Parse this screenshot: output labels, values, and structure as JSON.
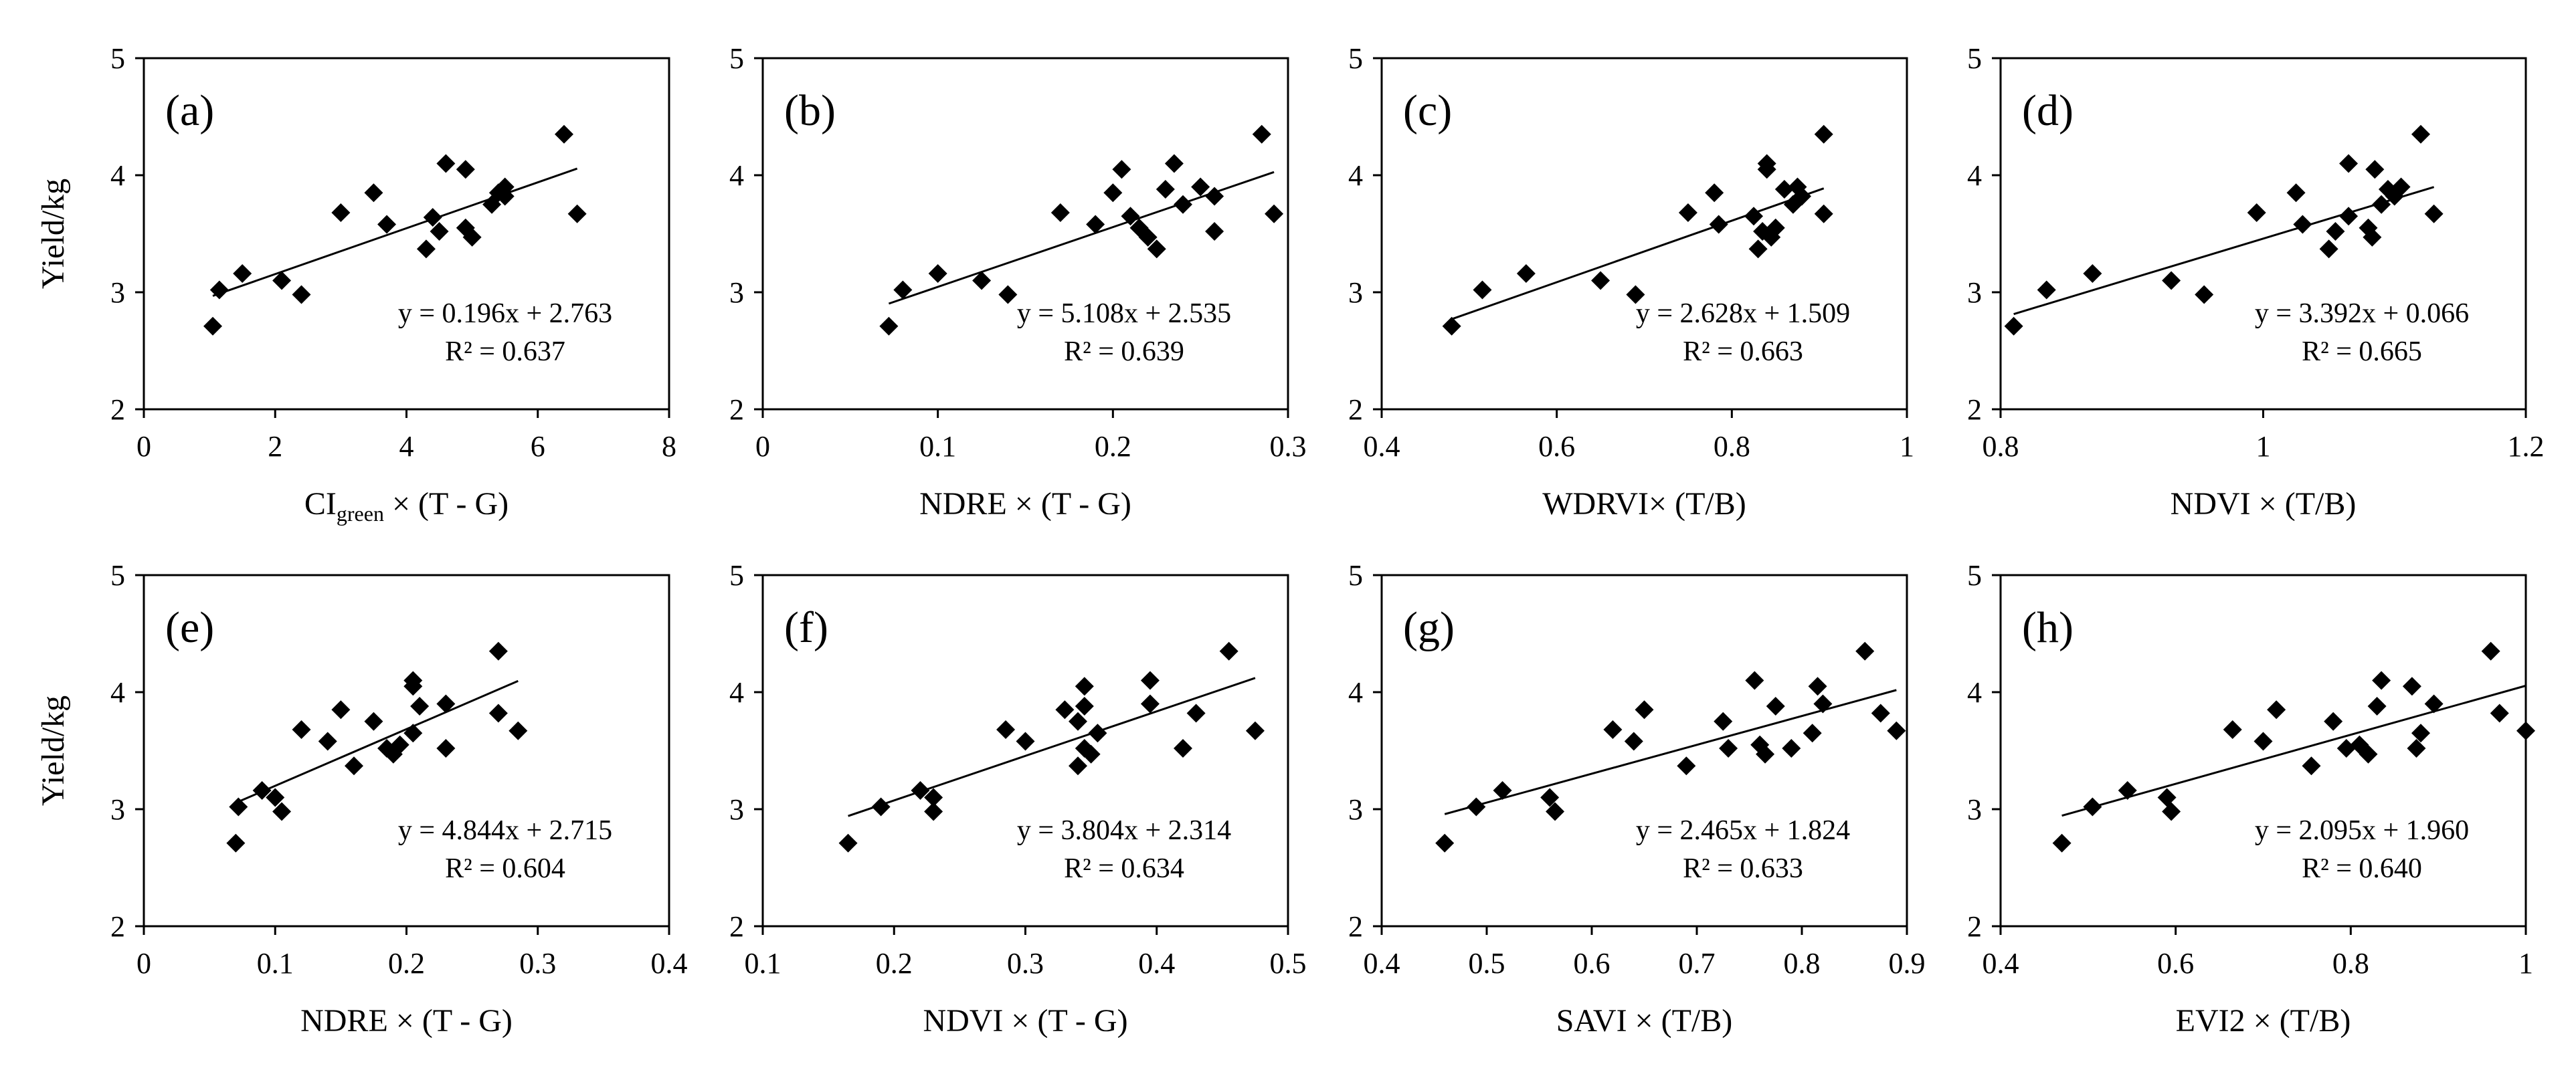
{
  "figure": {
    "y_axis_label": "Yield/kg"
  },
  "chart_data": [
    {
      "type": "scatter",
      "panel_label": "(a)",
      "xlabel": "CIgreen × (T - G)",
      "xlabel_parts": [
        "CI",
        "green",
        " × (T - G)"
      ],
      "ylabel": "Yield/kg",
      "xlim": [
        0,
        8
      ],
      "xticks": [
        0,
        2,
        4,
        6,
        8
      ],
      "xtick_labels": [
        "0",
        "2",
        "4",
        "6",
        "8"
      ],
      "ylim": [
        2,
        5
      ],
      "yticks": [
        2,
        3,
        4,
        5
      ],
      "ytick_labels": [
        "2",
        "3",
        "4",
        "5"
      ],
      "fit": {
        "slope": 0.196,
        "intercept": 2.763,
        "equation": "y = 0.196x + 2.763",
        "r2": "R² = 0.637"
      },
      "points": [
        [
          1.05,
          2.71
        ],
        [
          1.15,
          3.02
        ],
        [
          1.5,
          3.16
        ],
        [
          2.1,
          3.1
        ],
        [
          2.4,
          2.98
        ],
        [
          3.0,
          3.68
        ],
        [
          3.5,
          3.85
        ],
        [
          3.7,
          3.58
        ],
        [
          4.3,
          3.37
        ],
        [
          4.4,
          3.64
        ],
        [
          4.5,
          3.52
        ],
        [
          4.6,
          4.1
        ],
        [
          4.9,
          4.05
        ],
        [
          4.9,
          3.55
        ],
        [
          5.0,
          3.47
        ],
        [
          5.3,
          3.75
        ],
        [
          5.4,
          3.85
        ],
        [
          5.5,
          3.9
        ],
        [
          5.5,
          3.82
        ],
        [
          6.4,
          4.35
        ],
        [
          6.6,
          3.67
        ]
      ]
    },
    {
      "type": "scatter",
      "panel_label": "(b)",
      "xlabel": "NDRE × (T - G)",
      "ylabel": "",
      "xlim": [
        0,
        0.3
      ],
      "xticks": [
        0,
        0.1,
        0.2,
        0.3
      ],
      "xtick_labels": [
        "0",
        "0.1",
        "0.2",
        "0.3"
      ],
      "ylim": [
        2,
        5
      ],
      "yticks": [
        2,
        3,
        4,
        5
      ],
      "ytick_labels": [
        "2",
        "3",
        "4",
        "5"
      ],
      "fit": {
        "slope": 5.108,
        "intercept": 2.535,
        "equation": "y = 5.108x + 2.535",
        "r2": "R² = 0.639"
      },
      "points": [
        [
          0.072,
          2.71
        ],
        [
          0.08,
          3.02
        ],
        [
          0.1,
          3.16
        ],
        [
          0.125,
          3.1
        ],
        [
          0.14,
          2.98
        ],
        [
          0.17,
          3.68
        ],
        [
          0.19,
          3.58
        ],
        [
          0.2,
          3.85
        ],
        [
          0.205,
          4.05
        ],
        [
          0.21,
          3.65
        ],
        [
          0.215,
          3.55
        ],
        [
          0.22,
          3.47
        ],
        [
          0.225,
          3.37
        ],
        [
          0.23,
          3.88
        ],
        [
          0.235,
          4.1
        ],
        [
          0.24,
          3.75
        ],
        [
          0.25,
          3.9
        ],
        [
          0.258,
          3.82
        ],
        [
          0.258,
          3.52
        ],
        [
          0.285,
          4.35
        ],
        [
          0.292,
          3.67
        ]
      ]
    },
    {
      "type": "scatter",
      "panel_label": "(c)",
      "xlabel": "WDRVI× (T/B)",
      "ylabel": "",
      "xlim": [
        0.4,
        1
      ],
      "xticks": [
        0.4,
        0.6,
        0.8,
        1
      ],
      "xtick_labels": [
        "0.4",
        "0.6",
        "0.8",
        "1"
      ],
      "ylim": [
        2,
        5
      ],
      "yticks": [
        2,
        3,
        4,
        5
      ],
      "ytick_labels": [
        "2",
        "3",
        "4",
        "5"
      ],
      "fit": {
        "slope": 2.628,
        "intercept": 1.509,
        "equation": "y = 2.628x + 1.509",
        "r2": "R² = 0.663"
      },
      "points": [
        [
          0.48,
          2.71
        ],
        [
          0.515,
          3.02
        ],
        [
          0.565,
          3.16
        ],
        [
          0.65,
          3.1
        ],
        [
          0.69,
          2.98
        ],
        [
          0.75,
          3.68
        ],
        [
          0.78,
          3.85
        ],
        [
          0.785,
          3.58
        ],
        [
          0.825,
          3.65
        ],
        [
          0.83,
          3.37
        ],
        [
          0.835,
          3.52
        ],
        [
          0.84,
          4.1
        ],
        [
          0.84,
          4.05
        ],
        [
          0.845,
          3.47
        ],
        [
          0.85,
          3.55
        ],
        [
          0.86,
          3.88
        ],
        [
          0.87,
          3.75
        ],
        [
          0.875,
          3.9
        ],
        [
          0.88,
          3.82
        ],
        [
          0.905,
          4.35
        ],
        [
          0.905,
          3.67
        ]
      ]
    },
    {
      "type": "scatter",
      "panel_label": "(d)",
      "xlabel": "NDVI × (T/B)",
      "ylabel": "",
      "xlim": [
        0.8,
        1.2
      ],
      "xticks": [
        0.8,
        1,
        1.2
      ],
      "xtick_labels": [
        "0.8",
        "1",
        "1.2"
      ],
      "ylim": [
        2,
        5
      ],
      "yticks": [
        2,
        3,
        4,
        5
      ],
      "ytick_labels": [
        "2",
        "3",
        "4",
        "5"
      ],
      "fit": {
        "slope": 3.392,
        "intercept": 0.066,
        "equation": "y = 3.392x + 0.066",
        "r2": "R² = 0.665"
      },
      "points": [
        [
          0.81,
          2.71
        ],
        [
          0.835,
          3.02
        ],
        [
          0.87,
          3.16
        ],
        [
          0.93,
          3.1
        ],
        [
          0.955,
          2.98
        ],
        [
          0.995,
          3.68
        ],
        [
          1.025,
          3.85
        ],
        [
          1.03,
          3.58
        ],
        [
          1.05,
          3.37
        ],
        [
          1.055,
          3.52
        ],
        [
          1.065,
          3.65
        ],
        [
          1.065,
          4.1
        ],
        [
          1.08,
          3.55
        ],
        [
          1.083,
          3.47
        ],
        [
          1.085,
          4.05
        ],
        [
          1.09,
          3.75
        ],
        [
          1.095,
          3.88
        ],
        [
          1.1,
          3.82
        ],
        [
          1.105,
          3.9
        ],
        [
          1.12,
          4.35
        ],
        [
          1.13,
          3.67
        ]
      ]
    },
    {
      "type": "scatter",
      "panel_label": "(e)",
      "xlabel": "NDRE × (T - G)",
      "ylabel": "Yield/kg",
      "xlim": [
        0,
        0.4
      ],
      "xticks": [
        0,
        0.1,
        0.2,
        0.3,
        0.4
      ],
      "xtick_labels": [
        "0",
        "0.1",
        "0.2",
        "0.3",
        "0.4"
      ],
      "ylim": [
        2,
        5
      ],
      "yticks": [
        2,
        3,
        4,
        5
      ],
      "ytick_labels": [
        "2",
        "3",
        "4",
        "5"
      ],
      "fit": {
        "slope": 4.844,
        "intercept": 2.715,
        "equation": "y = 4.844x + 2.715",
        "r2": "R² = 0.604"
      },
      "points": [
        [
          0.07,
          2.71
        ],
        [
          0.072,
          3.02
        ],
        [
          0.09,
          3.16
        ],
        [
          0.1,
          3.1
        ],
        [
          0.105,
          2.98
        ],
        [
          0.12,
          3.68
        ],
        [
          0.14,
          3.58
        ],
        [
          0.15,
          3.85
        ],
        [
          0.16,
          3.37
        ],
        [
          0.175,
          3.75
        ],
        [
          0.185,
          3.52
        ],
        [
          0.19,
          3.47
        ],
        [
          0.195,
          3.55
        ],
        [
          0.205,
          3.65
        ],
        [
          0.205,
          4.05
        ],
        [
          0.205,
          4.1
        ],
        [
          0.21,
          3.88
        ],
        [
          0.23,
          3.9
        ],
        [
          0.23,
          3.52
        ],
        [
          0.27,
          4.35
        ],
        [
          0.27,
          3.82
        ],
        [
          0.285,
          3.67
        ]
      ]
    },
    {
      "type": "scatter",
      "panel_label": "(f)",
      "xlabel": "NDVI × (T - G)",
      "ylabel": "",
      "xlim": [
        0.1,
        0.5
      ],
      "xticks": [
        0.1,
        0.2,
        0.3,
        0.4,
        0.5
      ],
      "xtick_labels": [
        "0.1",
        "0.2",
        "0.3",
        "0.4",
        "0.5"
      ],
      "ylim": [
        2,
        5
      ],
      "yticks": [
        2,
        3,
        4,
        5
      ],
      "ytick_labels": [
        "2",
        "3",
        "4",
        "5"
      ],
      "fit": {
        "slope": 3.804,
        "intercept": 2.314,
        "equation": "y = 3.804x + 2.314",
        "r2": "R² = 0.634"
      },
      "points": [
        [
          0.165,
          2.71
        ],
        [
          0.19,
          3.02
        ],
        [
          0.22,
          3.16
        ],
        [
          0.23,
          3.1
        ],
        [
          0.23,
          2.98
        ],
        [
          0.285,
          3.68
        ],
        [
          0.3,
          3.58
        ],
        [
          0.33,
          3.85
        ],
        [
          0.34,
          3.75
        ],
        [
          0.34,
          3.37
        ],
        [
          0.345,
          3.52
        ],
        [
          0.345,
          3.88
        ],
        [
          0.345,
          4.05
        ],
        [
          0.35,
          3.47
        ],
        [
          0.355,
          3.65
        ],
        [
          0.395,
          4.1
        ],
        [
          0.395,
          3.9
        ],
        [
          0.42,
          3.52
        ],
        [
          0.43,
          3.82
        ],
        [
          0.455,
          4.35
        ],
        [
          0.475,
          3.67
        ]
      ]
    },
    {
      "type": "scatter",
      "panel_label": "(g)",
      "xlabel": "SAVI × (T/B)",
      "ylabel": "",
      "xlim": [
        0.4,
        0.9
      ],
      "xticks": [
        0.4,
        0.5,
        0.6,
        0.7,
        0.8,
        0.9
      ],
      "xtick_labels": [
        "0.4",
        "0.5",
        "0.6",
        "0.7",
        "0.8",
        "0.9"
      ],
      "ylim": [
        2,
        5
      ],
      "yticks": [
        2,
        3,
        4,
        5
      ],
      "ytick_labels": [
        "2",
        "3",
        "4",
        "5"
      ],
      "fit": {
        "slope": 2.465,
        "intercept": 1.824,
        "equation": "y = 2.465x + 1.824",
        "r2": "R² = 0.633"
      },
      "points": [
        [
          0.46,
          2.71
        ],
        [
          0.49,
          3.02
        ],
        [
          0.515,
          3.16
        ],
        [
          0.56,
          3.1
        ],
        [
          0.565,
          2.98
        ],
        [
          0.62,
          3.68
        ],
        [
          0.64,
          3.58
        ],
        [
          0.65,
          3.85
        ],
        [
          0.69,
          3.37
        ],
        [
          0.725,
          3.75
        ],
        [
          0.73,
          3.52
        ],
        [
          0.755,
          4.1
        ],
        [
          0.76,
          3.55
        ],
        [
          0.765,
          3.47
        ],
        [
          0.775,
          3.88
        ],
        [
          0.79,
          3.52
        ],
        [
          0.81,
          3.65
        ],
        [
          0.815,
          4.05
        ],
        [
          0.82,
          3.9
        ],
        [
          0.86,
          4.35
        ],
        [
          0.875,
          3.82
        ],
        [
          0.89,
          3.67
        ]
      ]
    },
    {
      "type": "scatter",
      "panel_label": "(h)",
      "xlabel": "EVI2 × (T/B)",
      "ylabel": "",
      "xlim": [
        0.4,
        1
      ],
      "xticks": [
        0.4,
        0.6,
        0.8,
        1
      ],
      "xtick_labels": [
        "0.4",
        "0.6",
        "0.8",
        "1"
      ],
      "ylim": [
        2,
        5
      ],
      "yticks": [
        2,
        3,
        4,
        5
      ],
      "ytick_labels": [
        "2",
        "3",
        "4",
        "5"
      ],
      "fit": {
        "slope": 2.095,
        "intercept": 1.96,
        "equation": "y = 2.095x + 1.960",
        "r2": "R² = 0.640"
      },
      "points": [
        [
          0.47,
          2.71
        ],
        [
          0.505,
          3.02
        ],
        [
          0.545,
          3.16
        ],
        [
          0.59,
          3.1
        ],
        [
          0.595,
          2.98
        ],
        [
          0.665,
          3.68
        ],
        [
          0.7,
          3.58
        ],
        [
          0.715,
          3.85
        ],
        [
          0.755,
          3.37
        ],
        [
          0.78,
          3.75
        ],
        [
          0.795,
          3.52
        ],
        [
          0.81,
          3.55
        ],
        [
          0.82,
          3.47
        ],
        [
          0.83,
          3.88
        ],
        [
          0.835,
          4.1
        ],
        [
          0.87,
          4.05
        ],
        [
          0.875,
          3.52
        ],
        [
          0.88,
          3.65
        ],
        [
          0.895,
          3.9
        ],
        [
          0.96,
          4.35
        ],
        [
          0.97,
          3.82
        ],
        [
          1.0,
          3.67
        ]
      ]
    }
  ]
}
